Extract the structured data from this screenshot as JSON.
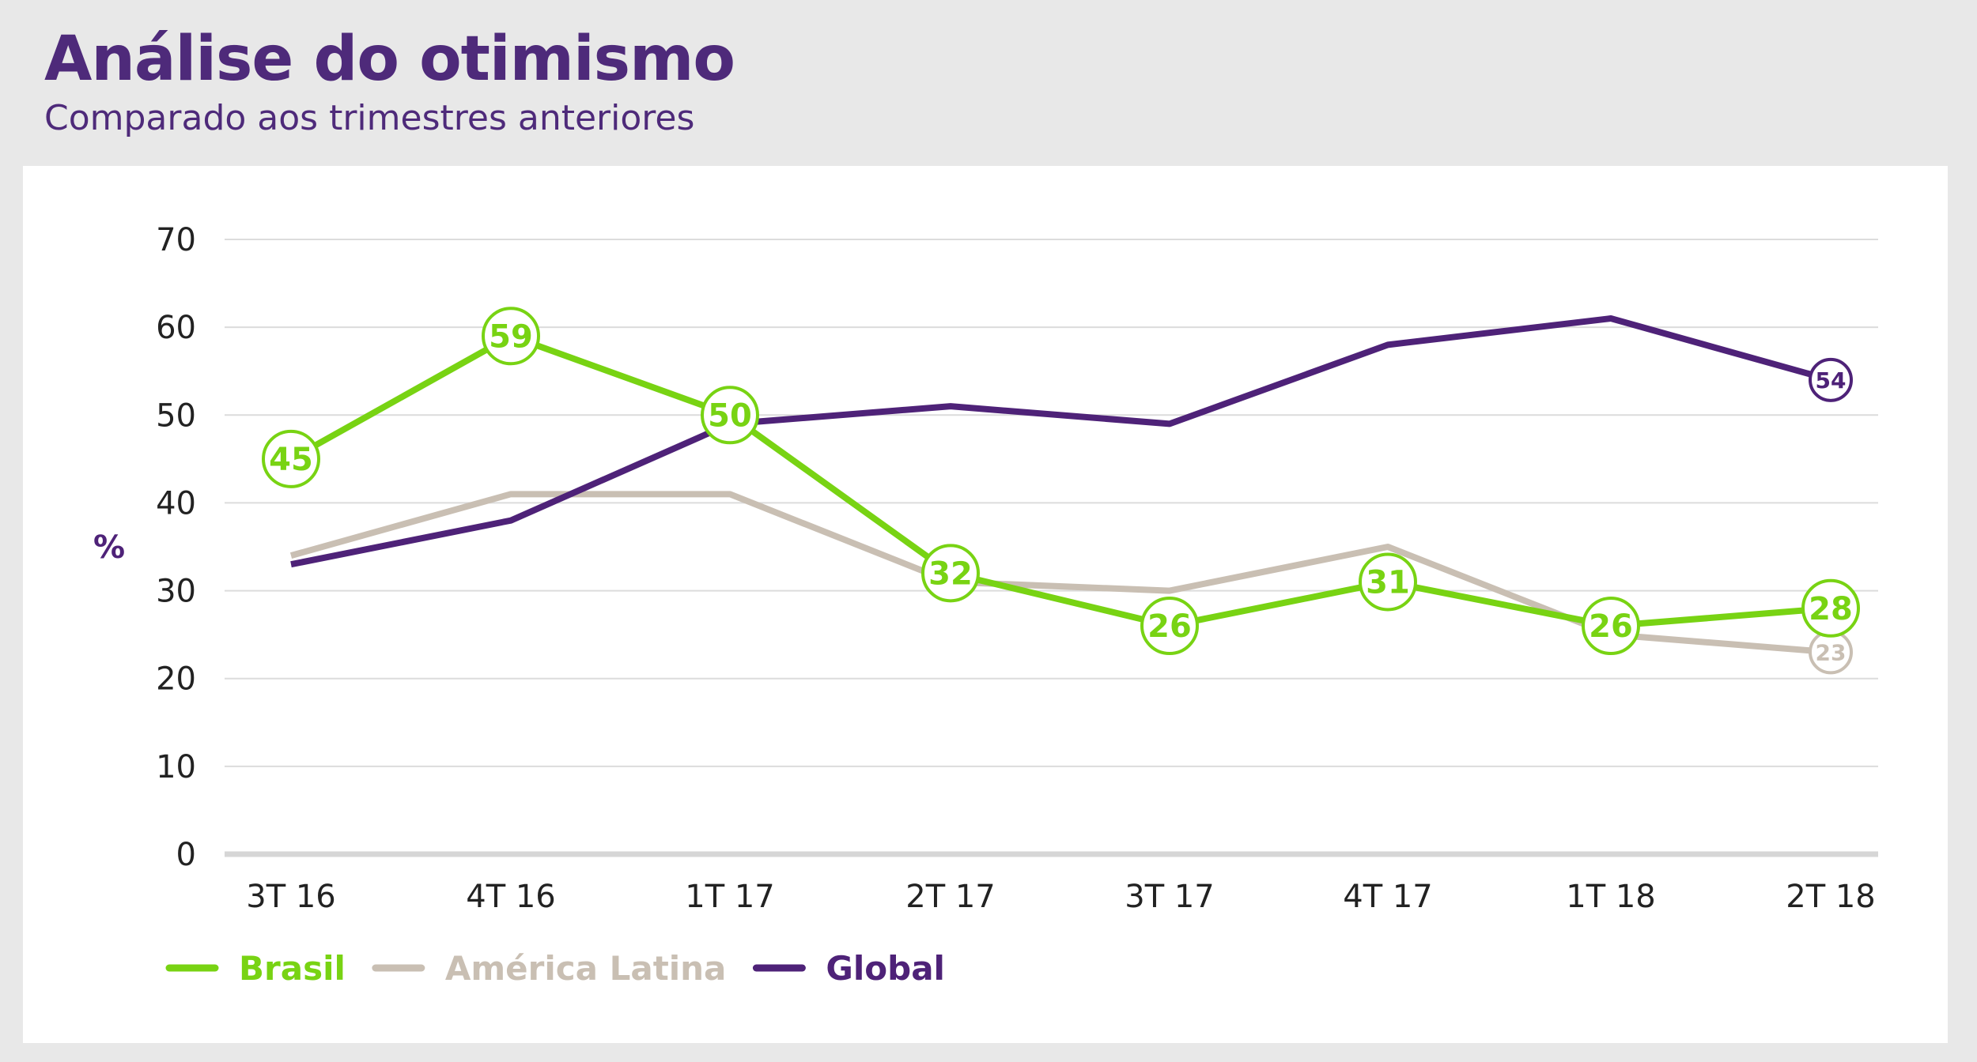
{
  "header": {
    "title": "Análise do otimismo",
    "subtitle": "Comparado aos trimestres anteriores"
  },
  "chart_data": {
    "type": "line",
    "ylabel": "%",
    "ylim": [
      0,
      70
    ],
    "yticks": [
      0,
      10,
      20,
      30,
      40,
      50,
      60,
      70
    ],
    "grid": true,
    "legend_position": "bottom-left",
    "categories": [
      "3T 16",
      "4T 16",
      "1T 17",
      "2T 17",
      "3T 17",
      "4T 17",
      "1T 18",
      "2T 18"
    ],
    "series": [
      {
        "name": "Brasil",
        "color": "#78d313",
        "values": [
          45,
          59,
          50,
          32,
          26,
          31,
          26,
          28
        ],
        "labeled": [
          0,
          1,
          2,
          3,
          4,
          5,
          6,
          7
        ]
      },
      {
        "name": "América Latina",
        "color": "#c9bfb3",
        "values": [
          34,
          41,
          41,
          31,
          30,
          35,
          25,
          23
        ],
        "labeled": [
          7
        ]
      },
      {
        "name": "Global",
        "color": "#4e2278",
        "values": [
          33,
          38,
          49,
          51,
          49,
          58,
          61,
          54
        ],
        "labeled": [
          7
        ]
      }
    ]
  }
}
